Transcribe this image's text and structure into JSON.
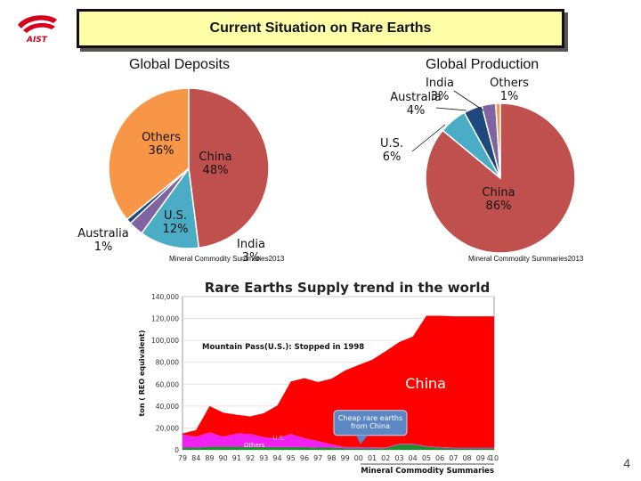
{
  "header": {
    "logo_text": "AIST",
    "title": "Current Situation on Rare Earths"
  },
  "colors": {
    "china": "#c0504d",
    "us": "#4bacc6",
    "india": "#8064a2",
    "australia": "#1f497d",
    "others": "#f79646",
    "logo_red": "#d7001c",
    "title_bg": "#ffffa8"
  },
  "chart_data": [
    {
      "type": "pie",
      "title": "Global Deposits",
      "source": "Mineral Commodity Summaries2013",
      "slices": [
        {
          "name": "China",
          "value": 48,
          "label": "China\n48%"
        },
        {
          "name": "U.S.",
          "value": 12,
          "label": "U.S.\n12%"
        },
        {
          "name": "India",
          "value": 3,
          "label": "India\n3%"
        },
        {
          "name": "Australia",
          "value": 1,
          "label": "Australia\n1%"
        },
        {
          "name": "Others",
          "value": 36,
          "label": "Others\n36%"
        }
      ]
    },
    {
      "type": "pie",
      "title": "Global Production",
      "source": "Mineral Commodity Summaries2013",
      "slices": [
        {
          "name": "China",
          "value": 86,
          "label": "China\n86%"
        },
        {
          "name": "U.S.",
          "value": 6,
          "label": "U.S.\n6%"
        },
        {
          "name": "Australia",
          "value": 4,
          "label": "Australia\n4%"
        },
        {
          "name": "India",
          "value": 3,
          "label": "India\n3%"
        },
        {
          "name": "Others",
          "value": 1,
          "label": "Others\n1%"
        }
      ]
    },
    {
      "type": "area",
      "title": "Rare Earths Supply trend in the world",
      "ylabel": "ton ( REO equivalent)",
      "source": "Mineral Commodity Summaries",
      "ylim": [
        0,
        140000
      ],
      "yticks": [
        "0",
        "20,000",
        "40,000",
        "60,000",
        "80,000",
        "100,000",
        "120,000",
        "140,000"
      ],
      "x": [
        "79",
        "84",
        "89",
        "90",
        "91",
        "92",
        "93",
        "94",
        "95",
        "96",
        "97",
        "98",
        "99",
        "00",
        "01",
        "02",
        "03",
        "04",
        "05",
        "06",
        "07",
        "08",
        "09",
        "10"
      ],
      "series": [
        {
          "name": "Others",
          "values": [
            2000,
            2000,
            3000,
            3000,
            3000,
            2500,
            2500,
            2500,
            2500,
            2500,
            2000,
            2000,
            1500,
            1500,
            1500,
            1500,
            5000,
            5000,
            3000,
            2000,
            1500,
            1500,
            1500,
            1500
          ]
        },
        {
          "name": "U.S.",
          "values": [
            12000,
            10000,
            13000,
            9000,
            12000,
            12000,
            9000,
            8000,
            12000,
            8000,
            6000,
            3000,
            1000,
            1000,
            800,
            600,
            500,
            500,
            500,
            500,
            500,
            500,
            500,
            500
          ]
        },
        {
          "name": "China",
          "values": [
            1000,
            6000,
            24000,
            22000,
            17000,
            16000,
            22000,
            30000,
            48000,
            55000,
            54000,
            60000,
            70000,
            75000,
            80000,
            88000,
            93000,
            98000,
            119000,
            120000,
            120000,
            120000,
            120000,
            120000
          ]
        }
      ],
      "annotations": {
        "mountain_pass": "Mountain Pass(U.S.): Stopped in 1998",
        "china_label": "China",
        "us_label": "U.S.",
        "others_label": "Others",
        "callout": "Cheap rare earths\nfrom China",
        "edge_mark": "4"
      }
    }
  ],
  "page_number": "4"
}
